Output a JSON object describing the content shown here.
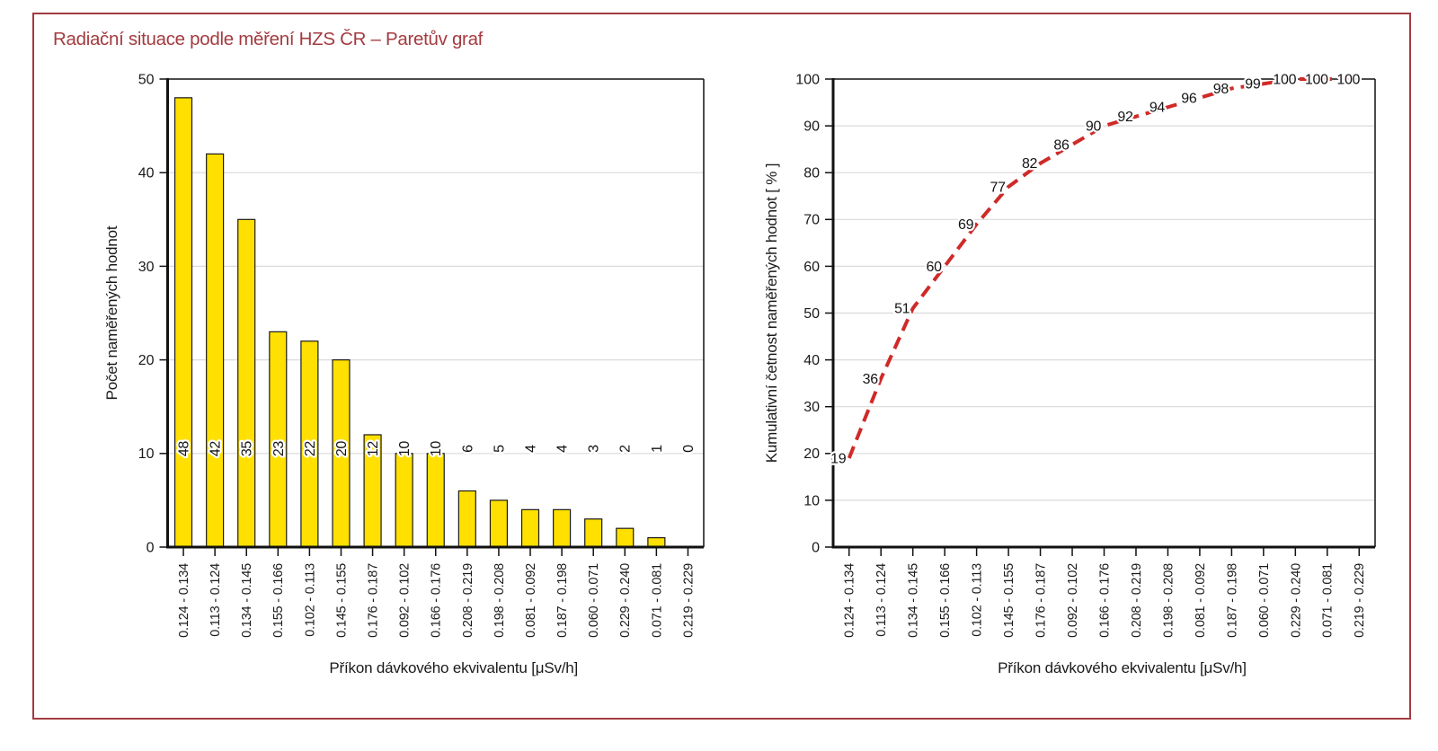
{
  "panel": {
    "title": "Radiační situace podle měření HZS ČR – Paretův graf",
    "border_color": "#A33B40",
    "title_color": "#A33B40"
  },
  "chart_data": [
    {
      "type": "bar",
      "title": "Radiační situace podle měření HZS ČR – Paretův graf",
      "categories": [
        "0.124 - 0.134",
        "0.113 - 0.124",
        "0.134 - 0.145",
        "0.155 - 0.166",
        "0.102 - 0.113",
        "0.145 - 0.155",
        "0.176 - 0.187",
        "0.092 - 0.102",
        "0.166 - 0.176",
        "0.208 - 0.219",
        "0.198 - 0.208",
        "0.081 - 0.092",
        "0.187 - 0.198",
        "0.060 - 0.071",
        "0.229 - 0.240",
        "0.071 - 0.081",
        "0.219 - 0.229"
      ],
      "values": [
        48,
        42,
        35,
        23,
        22,
        20,
        12,
        10,
        10,
        6,
        5,
        4,
        4,
        3,
        2,
        1,
        0
      ],
      "xlabel": "Příkon dávkového ekvivalentu [μSv/h]",
      "ylabel": "Počet naměřených hodnot",
      "ylim": [
        0,
        50
      ],
      "ytick_step": 10,
      "yticks": [
        0,
        10,
        20,
        30,
        40,
        50
      ],
      "grid": true,
      "bar_color": "#FFE000",
      "bar_border_color": "#1A1A1A"
    },
    {
      "type": "line",
      "title": "Radiační situace podle měření HZS ČR – Paretův graf",
      "categories": [
        "0.124 - 0.134",
        "0.113 - 0.124",
        "0.134 - 0.145",
        "0.155 - 0.166",
        "0.102 - 0.113",
        "0.145 - 0.155",
        "0.176 - 0.187",
        "0.092 - 0.102",
        "0.166 - 0.176",
        "0.208 - 0.219",
        "0.198 - 0.208",
        "0.081 - 0.092",
        "0.187 - 0.198",
        "0.060 - 0.071",
        "0.229 - 0.240",
        "0.071 - 0.081",
        "0.219 - 0.229"
      ],
      "values": [
        19,
        36,
        51,
        60,
        69,
        77,
        82,
        86,
        90,
        92,
        94,
        96,
        98,
        99,
        100,
        100,
        100
      ],
      "xlabel": "Příkon dávkového ekvivalentu [μSv/h]",
      "ylabel": "Kumulativní četnost naměřených hodnot [ % ]",
      "ylim": [
        0,
        100
      ],
      "ytick_step": 10,
      "yticks": [
        0,
        10,
        20,
        30,
        40,
        50,
        60,
        70,
        80,
        90,
        100
      ],
      "grid": true,
      "line_color": "#CF2A28",
      "line_style": "dashed"
    }
  ]
}
